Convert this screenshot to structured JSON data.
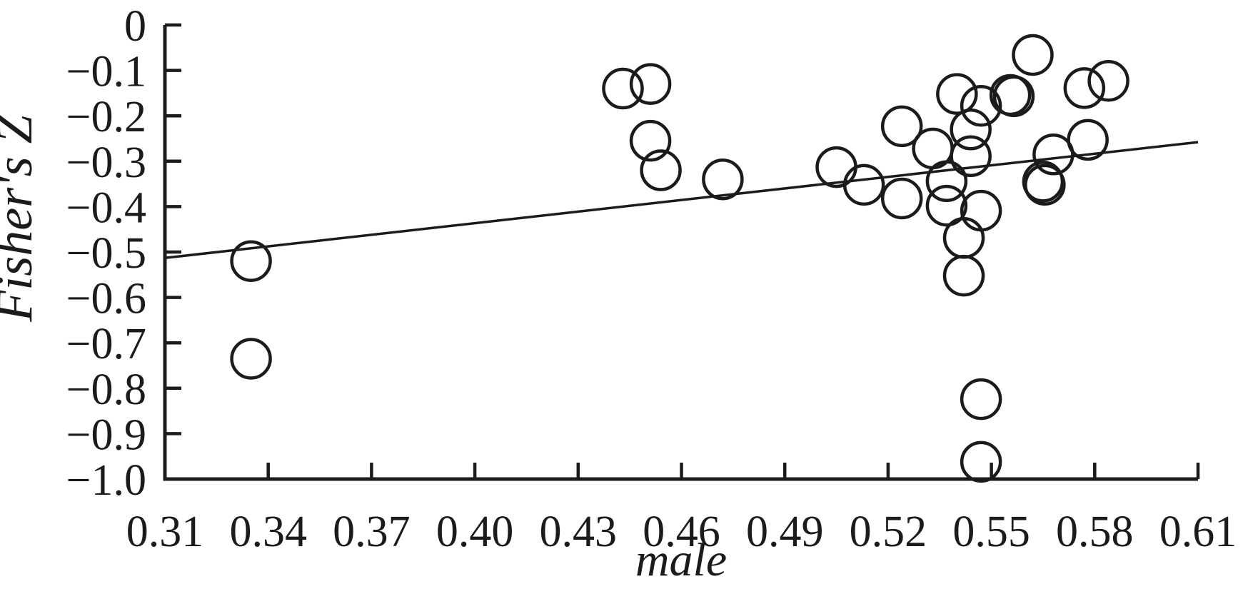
{
  "figure": {
    "background": "#ffffff",
    "ink": "#1b1b1b"
  },
  "chart_data": {
    "type": "scatter",
    "title": "",
    "xlabel": "male",
    "ylabel": "Fisher's Z",
    "xlim": [
      0.31,
      0.61
    ],
    "ylim": [
      -1.0,
      0
    ],
    "grid": false,
    "legend_position": "none",
    "marker": "open-circle",
    "x_ticks": [
      0.31,
      0.34,
      0.37,
      0.4,
      0.43,
      0.46,
      0.49,
      0.52,
      0.55,
      0.58,
      0.61
    ],
    "x_tick_labels": [
      "0.31",
      "0.34",
      "0.37",
      "0.40",
      "0.43",
      "0.46",
      "0.49",
      "0.52",
      "0.55",
      "0.58",
      "0.61"
    ],
    "y_ticks": [
      0,
      -0.1,
      -0.2,
      -0.3,
      -0.4,
      -0.5,
      -0.6,
      -0.7,
      -0.8,
      -0.9,
      -1.0
    ],
    "y_tick_labels": [
      "0",
      "−0.1",
      "−0.2",
      "−0.3",
      "−0.4",
      "−0.5",
      "−0.6",
      "−0.7",
      "−0.8",
      "−0.9",
      "−1.0"
    ],
    "points": [
      [
        0.335,
        -0.52
      ],
      [
        0.335,
        -0.735
      ],
      [
        0.443,
        -0.14
      ],
      [
        0.451,
        -0.13
      ],
      [
        0.451,
        -0.255
      ],
      [
        0.454,
        -0.32
      ],
      [
        0.472,
        -0.34
      ],
      [
        0.505,
        -0.313
      ],
      [
        0.513,
        -0.352
      ],
      [
        0.524,
        -0.223
      ],
      [
        0.524,
        -0.382
      ],
      [
        0.533,
        -0.272
      ],
      [
        0.537,
        -0.344
      ],
      [
        0.537,
        -0.398
      ],
      [
        0.54,
        -0.152
      ],
      [
        0.544,
        -0.23
      ],
      [
        0.544,
        -0.289
      ],
      [
        0.547,
        -0.178
      ],
      [
        0.542,
        -0.469
      ],
      [
        0.542,
        -0.552
      ],
      [
        0.547,
        -0.409
      ],
      [
        0.547,
        -0.824
      ],
      [
        0.547,
        -0.962
      ],
      [
        0.5555,
        -0.154
      ],
      [
        0.5565,
        -0.157
      ],
      [
        0.562,
        -0.066
      ],
      [
        0.565,
        -0.345
      ],
      [
        0.5655,
        -0.352
      ],
      [
        0.568,
        -0.285
      ],
      [
        0.577,
        -0.139
      ],
      [
        0.584,
        -0.123
      ],
      [
        0.578,
        -0.253
      ]
    ],
    "trend_line": {
      "x1": 0.31,
      "y1": -0.513,
      "x2": 0.61,
      "y2": -0.258
    }
  }
}
